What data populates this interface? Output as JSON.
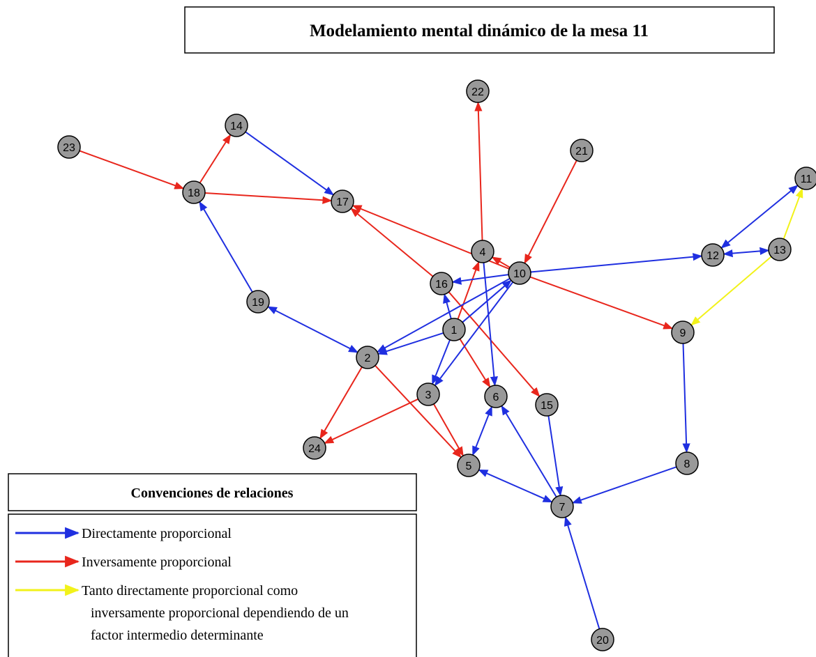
{
  "title": "Modelamiento mental dinámico de la mesa 11",
  "nodes": [
    "1",
    "2",
    "3",
    "4",
    "5",
    "6",
    "7",
    "8",
    "9",
    "10",
    "11",
    "12",
    "13",
    "14",
    "15",
    "16",
    "17",
    "18",
    "19",
    "20",
    "21",
    "22",
    "23",
    "24"
  ],
  "legend": {
    "title": "Convenciones de relaciones",
    "items": [
      "Directamente proporcional",
      "Inversamente proporcional",
      "Tanto directamente proporcional como inversamente proporcional dependiendo de un factor intermedio determinante"
    ]
  }
}
